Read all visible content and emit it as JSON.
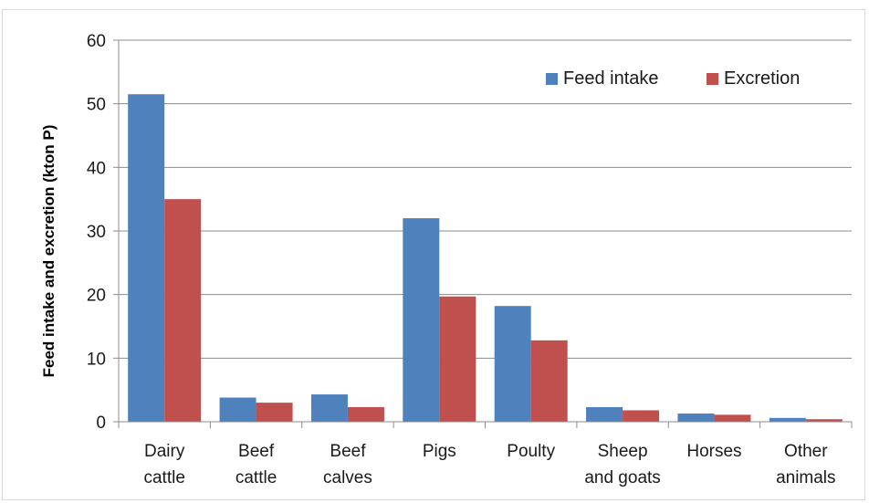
{
  "chart_data": {
    "type": "bar",
    "categories": [
      [
        "Dairy",
        "cattle"
      ],
      [
        "Beef",
        "cattle"
      ],
      [
        "Beef",
        "calves"
      ],
      [
        "Pigs"
      ],
      [
        "Poulty"
      ],
      [
        "Sheep",
        "and goats"
      ],
      [
        "Horses"
      ],
      [
        "Other",
        "animals"
      ]
    ],
    "series": [
      {
        "name": "Feed intake",
        "color": "#4f81bd",
        "values": [
          51.5,
          3.8,
          4.3,
          32.0,
          18.2,
          2.3,
          1.3,
          0.6
        ]
      },
      {
        "name": "Excretion",
        "color": "#c0504d",
        "values": [
          35.0,
          3.0,
          2.3,
          19.7,
          12.8,
          1.8,
          1.1,
          0.4
        ]
      }
    ],
    "ylabel": "Feed intake and excretion (kton P)",
    "xlabel": "",
    "ylim": [
      0,
      60
    ],
    "yticks": [
      "0",
      "10",
      "20",
      "30",
      "40",
      "50",
      "60"
    ],
    "grid": true,
    "legend_position": "top-right"
  }
}
